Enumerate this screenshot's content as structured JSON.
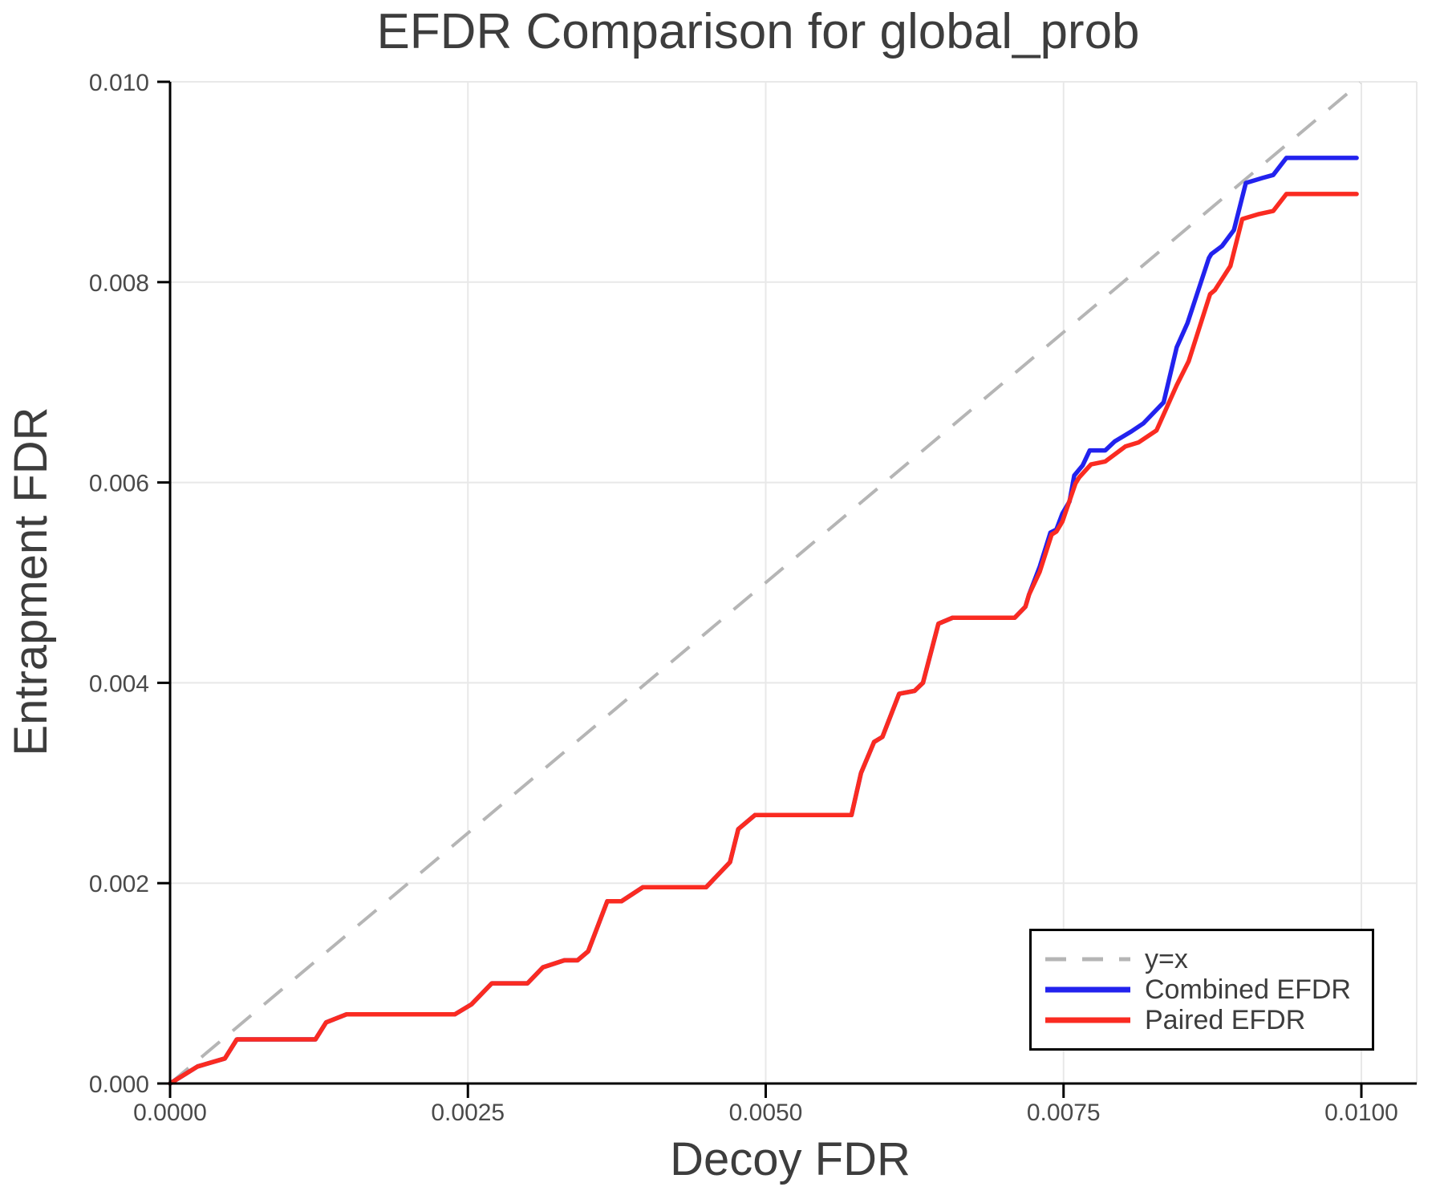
{
  "title": "EFDR Comparison for global_prob",
  "colors": {
    "background": "#ffffff",
    "grid": "#e8e8e8",
    "spine": "#000000",
    "title_text": "#3d3d3d",
    "tick_text": "#4a4a4a",
    "legend_border": "#000000",
    "identity_line": "#b5b5b5",
    "combined": "#2222ee",
    "paired": "#fa2b21"
  },
  "chart_data": {
    "type": "line",
    "title": "EFDR Comparison for global_prob",
    "xlabel": "Decoy FDR",
    "ylabel": "Entrapment FDR",
    "xlim": [
      0,
      0.0104646
    ],
    "ylim": [
      0,
      0.01
    ],
    "grid": true,
    "legend_position": "bottom-right",
    "x_ticks": {
      "values": [
        0,
        0.0025,
        0.005,
        0.0075,
        0.01
      ],
      "labels": [
        "0.0000",
        "0.0025",
        "0.0050",
        "0.0075",
        "0.0100"
      ]
    },
    "y_ticks": {
      "values": [
        0,
        0.002,
        0.004,
        0.006,
        0.008,
        0.01
      ],
      "labels": [
        "0.000",
        "0.002",
        "0.004",
        "0.006",
        "0.008",
        "0.010"
      ]
    },
    "series": [
      {
        "name": "y=x",
        "color": "#b5b5b5",
        "width": 4,
        "dash": "30 21",
        "points": [
          [
            0,
            0
          ],
          [
            0.00999,
            0.00999
          ]
        ]
      },
      {
        "name": "Combined EFDR",
        "color": "#2222ee",
        "width": 5.5,
        "dash": null,
        "points": [
          [
            0,
            0
          ],
          [
            0.00023,
            0.00017
          ],
          [
            0.00046,
            0.00025
          ],
          [
            0.00056,
            0.00044
          ],
          [
            0.00122,
            0.00044
          ],
          [
            0.00131,
            0.00061
          ],
          [
            0.00148,
            0.00069
          ],
          [
            0.00239,
            0.00069
          ],
          [
            0.00253,
            0.00079
          ],
          [
            0.0027,
            0.001
          ],
          [
            0.003,
            0.001
          ],
          [
            0.00313,
            0.00116
          ],
          [
            0.00331,
            0.00123
          ],
          [
            0.00342,
            0.00123
          ],
          [
            0.00351,
            0.00132
          ],
          [
            0.00367,
            0.00182
          ],
          [
            0.00379,
            0.00182
          ],
          [
            0.00397,
            0.00196
          ],
          [
            0.0045,
            0.00196
          ],
          [
            0.0047,
            0.00221
          ],
          [
            0.00477,
            0.00254
          ],
          [
            0.00491,
            0.00268
          ],
          [
            0.00572,
            0.00268
          ],
          [
            0.0058,
            0.0031
          ],
          [
            0.00591,
            0.00341
          ],
          [
            0.00598,
            0.00346
          ],
          [
            0.00612,
            0.00389
          ],
          [
            0.00625,
            0.00392
          ],
          [
            0.00632,
            0.004
          ],
          [
            0.00645,
            0.00459
          ],
          [
            0.00657,
            0.00465
          ],
          [
            0.00709,
            0.00465
          ],
          [
            0.00718,
            0.00476
          ],
          [
            0.00721,
            0.00488
          ],
          [
            0.0073,
            0.00516
          ],
          [
            0.00739,
            0.0055
          ],
          [
            0.00744,
            0.00553
          ],
          [
            0.00749,
            0.00569
          ],
          [
            0.00755,
            0.00581
          ],
          [
            0.00759,
            0.00607
          ],
          [
            0.00766,
            0.00617
          ],
          [
            0.00772,
            0.00632
          ],
          [
            0.00785,
            0.00632
          ],
          [
            0.00793,
            0.00641
          ],
          [
            0.00807,
            0.00651
          ],
          [
            0.00817,
            0.00659
          ],
          [
            0.00834,
            0.0068
          ],
          [
            0.00845,
            0.00735
          ],
          [
            0.00854,
            0.00759
          ],
          [
            0.00872,
            0.00824
          ],
          [
            0.00874,
            0.00828
          ],
          [
            0.00883,
            0.00836
          ],
          [
            0.00893,
            0.00852
          ],
          [
            0.00903,
            0.00899
          ],
          [
            0.00917,
            0.00904
          ],
          [
            0.00926,
            0.00907
          ],
          [
            0.00937,
            0.00924
          ],
          [
            0.00996,
            0.00924
          ]
        ]
      },
      {
        "name": "Paired EFDR",
        "color": "#fa2b21",
        "width": 5.5,
        "dash": null,
        "points": [
          [
            0,
            0
          ],
          [
            0.00023,
            0.00017
          ],
          [
            0.00046,
            0.00025
          ],
          [
            0.00056,
            0.00044
          ],
          [
            0.00122,
            0.00044
          ],
          [
            0.00131,
            0.00061
          ],
          [
            0.00148,
            0.00069
          ],
          [
            0.00239,
            0.00069
          ],
          [
            0.00253,
            0.00079
          ],
          [
            0.0027,
            0.001
          ],
          [
            0.003,
            0.001
          ],
          [
            0.00313,
            0.00116
          ],
          [
            0.00331,
            0.00123
          ],
          [
            0.00342,
            0.00123
          ],
          [
            0.00351,
            0.00132
          ],
          [
            0.00367,
            0.00182
          ],
          [
            0.00379,
            0.00182
          ],
          [
            0.00397,
            0.00196
          ],
          [
            0.0045,
            0.00196
          ],
          [
            0.0047,
            0.00221
          ],
          [
            0.00477,
            0.00254
          ],
          [
            0.00491,
            0.00268
          ],
          [
            0.00572,
            0.00268
          ],
          [
            0.0058,
            0.0031
          ],
          [
            0.00591,
            0.00341
          ],
          [
            0.00598,
            0.00346
          ],
          [
            0.00612,
            0.00389
          ],
          [
            0.00625,
            0.00392
          ],
          [
            0.00632,
            0.004
          ],
          [
            0.00645,
            0.00459
          ],
          [
            0.00657,
            0.00465
          ],
          [
            0.00709,
            0.00465
          ],
          [
            0.00718,
            0.00476
          ],
          [
            0.00721,
            0.00488
          ],
          [
            0.0073,
            0.00511
          ],
          [
            0.0074,
            0.00548
          ],
          [
            0.00744,
            0.00551
          ],
          [
            0.00749,
            0.00561
          ],
          [
            0.0076,
            0.00599
          ],
          [
            0.00763,
            0.00605
          ],
          [
            0.00773,
            0.00618
          ],
          [
            0.00785,
            0.00621
          ],
          [
            0.00802,
            0.00636
          ],
          [
            0.00813,
            0.0064
          ],
          [
            0.00828,
            0.00652
          ],
          [
            0.00845,
            0.00697
          ],
          [
            0.00855,
            0.00721
          ],
          [
            0.00873,
            0.00788
          ],
          [
            0.00877,
            0.00792
          ],
          [
            0.0089,
            0.00816
          ],
          [
            0.009,
            0.00863
          ],
          [
            0.00914,
            0.00868
          ],
          [
            0.00926,
            0.00871
          ],
          [
            0.00937,
            0.00888
          ],
          [
            0.00996,
            0.00888
          ]
        ]
      }
    ]
  }
}
